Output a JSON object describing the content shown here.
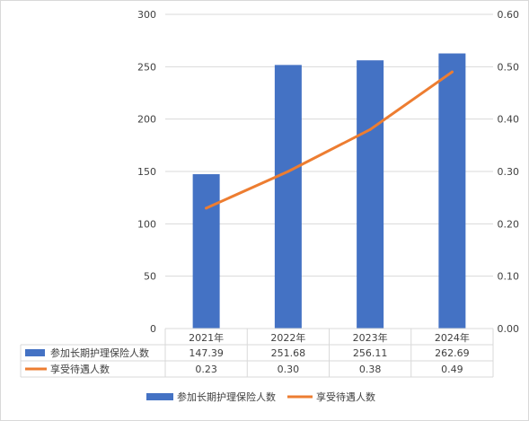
{
  "chart_data": {
    "type": "bar",
    "categories": [
      "2021年",
      "2022年",
      "2023年",
      "2024年"
    ],
    "series": [
      {
        "name": "参加长期护理保险人数",
        "type": "bar",
        "axis": "left",
        "values": [
          147.39,
          251.68,
          256.11,
          262.69
        ],
        "value_labels": [
          "147.39",
          "251.68",
          "256.11",
          "262.69"
        ],
        "color": "#4472c4"
      },
      {
        "name": "享受待遇人数",
        "type": "line",
        "axis": "right",
        "values": [
          0.23,
          0.3,
          0.38,
          0.49
        ],
        "value_labels": [
          "0.23",
          "0.30",
          "0.38",
          "0.49"
        ],
        "color": "#ed7d31"
      }
    ],
    "y_left": {
      "ylim": [
        0,
        300
      ],
      "ticks": [
        0,
        50,
        100,
        150,
        200,
        250,
        300
      ],
      "tick_labels": [
        "0",
        "50",
        "100",
        "150",
        "200",
        "250",
        "300"
      ]
    },
    "y_right": {
      "ylim": [
        0,
        0.6
      ],
      "ticks": [
        0,
        0.1,
        0.2,
        0.3,
        0.4,
        0.5,
        0.6
      ],
      "tick_labels": [
        "0.00",
        "0.10",
        "0.20",
        "0.30",
        "0.40",
        "0.50",
        "0.60"
      ]
    },
    "grid": true,
    "data_table": true,
    "legend_position": "bottom"
  }
}
